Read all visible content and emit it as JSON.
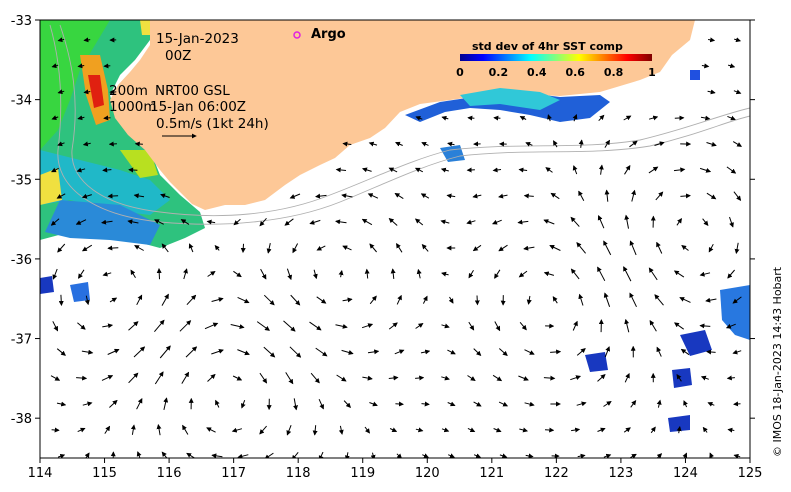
{
  "map": {
    "x_ticks": [
      "114",
      "115",
      "116",
      "117",
      "118",
      "119",
      "120",
      "121",
      "122",
      "123",
      "124",
      "125"
    ],
    "y_ticks": [
      "-33",
      "-34",
      "-35",
      "-36",
      "-37",
      "-38"
    ],
    "lon_range": [
      114,
      125
    ],
    "lat_range": [
      -38.5,
      -33
    ],
    "annotations": {
      "date": "15-Jan-2023",
      "time": "00Z",
      "depth_200": "200m",
      "product": "NRT00 GSL",
      "depth_1000": "1000m",
      "analysis_time": "15-Jan 06:00Z",
      "scale": "0.5m/s (1kt 24h)"
    },
    "legend_argo": "Argo",
    "colorbar": {
      "title": "std dev of 4hr SST comp",
      "ticks": [
        "0",
        "0.2",
        "0.4",
        "0.6",
        "0.8",
        "1"
      ]
    },
    "credit": "© IMOS 18-Jan-2023 14:43 Hobart",
    "colors": {
      "land": "#fdc897",
      "argo_marker": "#e020e0"
    }
  }
}
